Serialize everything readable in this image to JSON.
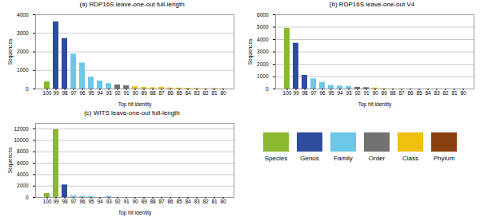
{
  "chart_data": [
    {
      "type": "bar",
      "title": "(a) RDP16S leave-one-out full-length",
      "categories": [
        "100",
        "99",
        "98",
        "97",
        "96",
        "95",
        "94",
        "93",
        "92",
        "91",
        "90",
        "89",
        "88",
        "87",
        "86",
        "85",
        "84",
        "83",
        "82",
        "81",
        "80"
      ],
      "series": [
        {
          "name": "Species",
          "color": "#8ab830",
          "values": [
            380,
            null,
            null,
            null,
            null,
            null,
            null,
            null,
            null,
            null,
            null,
            null,
            null,
            null,
            null,
            null,
            null,
            null,
            null,
            null,
            null
          ]
        },
        {
          "name": "Genus",
          "color": "#2e4d9e",
          "values": [
            null,
            3620,
            2720,
            null,
            null,
            null,
            null,
            null,
            null,
            null,
            null,
            null,
            null,
            null,
            null,
            null,
            null,
            null,
            null,
            null,
            null
          ]
        },
        {
          "name": "Family",
          "color": "#6dc8e8",
          "values": [
            null,
            null,
            null,
            1880,
            1400,
            640,
            430,
            290,
            null,
            null,
            null,
            null,
            null,
            null,
            null,
            null,
            null,
            null,
            null,
            null,
            null
          ]
        },
        {
          "name": "Order",
          "color": "#717171",
          "values": [
            null,
            null,
            null,
            null,
            null,
            null,
            null,
            null,
            220,
            180,
            null,
            null,
            null,
            null,
            null,
            null,
            null,
            null,
            null,
            null,
            null
          ]
        },
        {
          "name": "Class",
          "color": "#f0c010",
          "values": [
            null,
            null,
            null,
            null,
            null,
            null,
            null,
            null,
            null,
            null,
            120,
            90,
            70,
            90,
            60,
            50,
            40,
            30,
            20,
            30,
            20
          ]
        },
        {
          "name": "Phylum",
          "color": "#8b4010",
          "values": [
            null,
            null,
            null,
            null,
            null,
            null,
            null,
            null,
            null,
            null,
            null,
            null,
            null,
            null,
            null,
            null,
            null,
            null,
            null,
            null,
            null
          ]
        }
      ],
      "xlabel": "Top hit identity",
      "ylabel": "Sequences",
      "ylim": [
        0,
        4000
      ],
      "yticks": [
        0,
        1000,
        2000,
        3000,
        4000
      ],
      "grid": true,
      "legend": "lower right"
    },
    {
      "type": "bar",
      "title": "(b) RDP16S leave-one-out V4",
      "categories": [
        "100",
        "99",
        "98",
        "97",
        "96",
        "95",
        "94",
        "93",
        "92",
        "91",
        "90",
        "89",
        "88",
        "87",
        "86",
        "85",
        "84",
        "83",
        "82",
        "81",
        "80"
      ],
      "series": [
        {
          "name": "Species",
          "color": "#8ab830",
          "values": [
            4900,
            null,
            null,
            null,
            null,
            null,
            null,
            null,
            null,
            null,
            null,
            null,
            null,
            null,
            null,
            null,
            null,
            null,
            null,
            null,
            null
          ]
        },
        {
          "name": "Genus",
          "color": "#2e4d9e",
          "values": [
            null,
            3700,
            1100,
            null,
            null,
            null,
            null,
            null,
            null,
            null,
            null,
            null,
            null,
            null,
            null,
            null,
            null,
            null,
            null,
            null,
            null
          ]
        },
        {
          "name": "Family",
          "color": "#6dc8e8",
          "values": [
            null,
            null,
            null,
            820,
            540,
            290,
            240,
            190,
            null,
            null,
            null,
            null,
            null,
            null,
            null,
            null,
            null,
            null,
            null,
            null,
            null
          ]
        },
        {
          "name": "Order",
          "color": "#717171",
          "values": [
            null,
            null,
            null,
            null,
            null,
            null,
            null,
            null,
            140,
            110,
            null,
            null,
            null,
            null,
            null,
            null,
            null,
            null,
            null,
            null,
            null
          ]
        },
        {
          "name": "Class",
          "color": "#f0c010",
          "values": [
            null,
            null,
            null,
            null,
            null,
            null,
            null,
            null,
            null,
            null,
            80,
            30,
            15,
            10,
            10,
            5,
            5,
            5,
            3,
            3,
            3
          ]
        },
        {
          "name": "Phylum",
          "color": "#8b4010",
          "values": [
            null,
            null,
            null,
            null,
            null,
            null,
            null,
            null,
            null,
            null,
            null,
            null,
            null,
            null,
            null,
            null,
            null,
            null,
            null,
            null,
            null
          ]
        }
      ],
      "xlabel": "Top hit identity",
      "ylabel": "Sequences",
      "ylim": [
        0,
        6000
      ],
      "yticks": [
        0,
        1000,
        2000,
        3000,
        4000,
        5000,
        6000
      ],
      "grid": true,
      "legend": "lower right"
    },
    {
      "type": "bar",
      "title": "(c) WITS leave-one-out full-length",
      "categories": [
        "100",
        "99",
        "98",
        "97",
        "96",
        "95",
        "94",
        "93",
        "92",
        "91",
        "90",
        "89",
        "88",
        "87",
        "86",
        "85",
        "84",
        "83",
        "82",
        "81",
        "80"
      ],
      "series": [
        {
          "name": "Species",
          "color": "#8ab830",
          "values": [
            700,
            11900,
            null,
            null,
            null,
            null,
            null,
            null,
            null,
            null,
            null,
            null,
            null,
            null,
            null,
            null,
            null,
            null,
            null,
            null,
            null
          ]
        },
        {
          "name": "Genus",
          "color": "#2e4d9e",
          "values": [
            null,
            null,
            2200,
            null,
            null,
            null,
            null,
            null,
            null,
            null,
            null,
            null,
            null,
            null,
            null,
            null,
            null,
            null,
            null,
            null,
            null
          ]
        },
        {
          "name": "Family",
          "color": "#6dc8e8",
          "values": [
            null,
            null,
            null,
            270,
            170,
            140,
            20,
            200,
            10,
            5,
            5,
            3,
            3,
            3,
            3,
            3,
            3,
            3,
            3,
            3,
            3
          ]
        },
        {
          "name": "Order",
          "color": "#717171",
          "values": [
            null,
            null,
            null,
            null,
            null,
            null,
            null,
            null,
            null,
            null,
            null,
            null,
            null,
            null,
            null,
            null,
            null,
            null,
            null,
            null,
            null
          ]
        },
        {
          "name": "Class",
          "color": "#f0c010",
          "values": [
            null,
            null,
            null,
            null,
            null,
            null,
            null,
            null,
            null,
            null,
            null,
            null,
            null,
            null,
            null,
            null,
            null,
            null,
            null,
            null,
            null
          ]
        },
        {
          "name": "Phylum",
          "color": "#8b4010",
          "values": [
            null,
            null,
            null,
            null,
            null,
            null,
            null,
            null,
            null,
            null,
            null,
            null,
            null,
            null,
            null,
            null,
            null,
            null,
            null,
            null,
            null
          ]
        }
      ],
      "xlabel": "Top hit identity",
      "ylabel": "Sequences",
      "ylim": [
        0,
        13000
      ],
      "yticks": [
        0,
        2000,
        4000,
        6000,
        8000,
        10000,
        12000
      ],
      "grid": true,
      "legend": "lower right"
    }
  ]
}
